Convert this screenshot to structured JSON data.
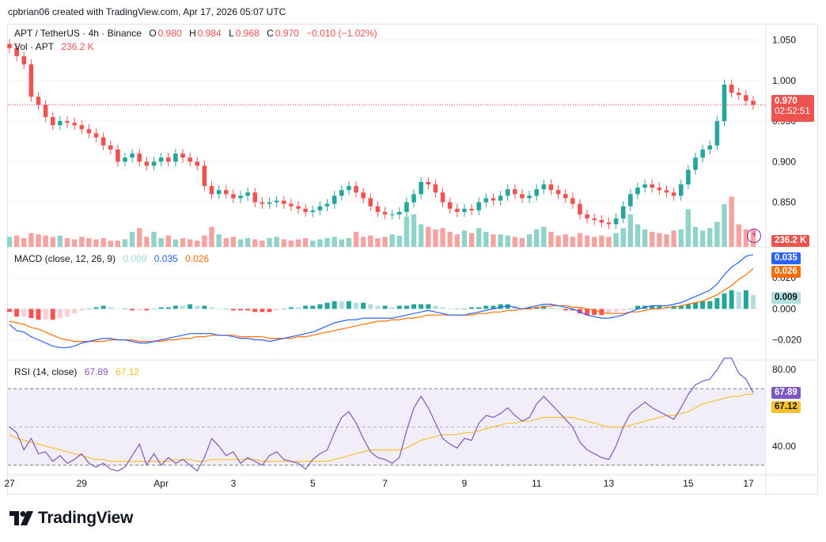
{
  "header": {
    "text": "cpbrian06 created with TradingView.com, Apr 17, 2026 05:07 UTC"
  },
  "price_legend": {
    "symbol": "APT / TetherUS · 4h · Binance",
    "o_label": "O",
    "o_value": "0.980",
    "h_label": "H",
    "h_value": "0.984",
    "l_label": "L",
    "l_value": "0.968",
    "c_label": "C",
    "c_value": "0.970",
    "change": "−0.010 (−1.02%)"
  },
  "vol_legend": {
    "label": "Vol · APT",
    "value": "236.2 K"
  },
  "macd_legend": {
    "label": "MACD (close, 12, 26, 9)",
    "hist": "0.009",
    "macd": "0.035",
    "signal": "0.026"
  },
  "rsi_legend": {
    "label": "RSI (14, close)",
    "rsi": "67.89",
    "ma": "67.12"
  },
  "badges": {
    "price": "0.970",
    "countdown": "02:52:51",
    "volume": "236.2 K",
    "macd": "0.035",
    "signal": "0.026",
    "hist": "0.009",
    "rsi": "67.89",
    "rsi_ma": "67.12"
  },
  "brand": {
    "name": "TradingView"
  },
  "colors": {
    "up": "#26a69a",
    "down": "#ef5350",
    "macd": "#2962ff",
    "signal": "#ff6d00",
    "rsi": "#7e57c2",
    "rsi_ma": "#fbc02d"
  },
  "chart_data": [
    {
      "type": "candlestick",
      "x_ticks": [
        "27",
        "29",
        "Apr",
        "3",
        "5",
        "7",
        "9",
        "11",
        "13",
        "15",
        "17"
      ],
      "y_ticks": [
        "1.050",
        "1.000",
        "0.950",
        "0.900",
        "0.850",
        "0.800"
      ],
      "ylim": [
        0.795,
        1.07
      ],
      "close": [
        1.04,
        1.03,
        1.02,
        0.98,
        0.97,
        0.955,
        0.945,
        0.95,
        0.948,
        0.945,
        0.94,
        0.935,
        0.93,
        0.92,
        0.915,
        0.9,
        0.905,
        0.91,
        0.9,
        0.895,
        0.9,
        0.905,
        0.9,
        0.91,
        0.905,
        0.9,
        0.895,
        0.87,
        0.86,
        0.865,
        0.86,
        0.855,
        0.858,
        0.862,
        0.85,
        0.848,
        0.85,
        0.852,
        0.848,
        0.845,
        0.842,
        0.838,
        0.84,
        0.845,
        0.848,
        0.858,
        0.865,
        0.87,
        0.862,
        0.855,
        0.845,
        0.838,
        0.835,
        0.835,
        0.838,
        0.85,
        0.86,
        0.875,
        0.872,
        0.862,
        0.85,
        0.842,
        0.838,
        0.842,
        0.84,
        0.85,
        0.855,
        0.852,
        0.858,
        0.866,
        0.86,
        0.855,
        0.858,
        0.866,
        0.872,
        0.865,
        0.86,
        0.855,
        0.848,
        0.835,
        0.83,
        0.828,
        0.825,
        0.823,
        0.83,
        0.845,
        0.86,
        0.868,
        0.872,
        0.868,
        0.865,
        0.862,
        0.858,
        0.872,
        0.89,
        0.905,
        0.915,
        0.92,
        0.95,
        0.995,
        0.985,
        0.982,
        0.975,
        0.97
      ],
      "volume": [
        0.8,
        0.9,
        0.7,
        1.1,
        1.0,
        0.9,
        0.8,
        0.9,
        0.7,
        0.6,
        0.8,
        0.7,
        0.6,
        0.7,
        0.5,
        0.5,
        0.6,
        1.2,
        1.5,
        0.8,
        1.2,
        0.7,
        0.9,
        0.6,
        0.7,
        0.6,
        0.5,
        0.9,
        1.6,
        1.0,
        0.7,
        0.8,
        0.6,
        0.7,
        0.6,
        0.5,
        0.7,
        0.8,
        0.6,
        0.5,
        0.6,
        0.7,
        0.5,
        0.6,
        0.7,
        0.8,
        0.6,
        0.7,
        1.2,
        0.8,
        0.9,
        0.7,
        0.8,
        1.0,
        0.9,
        2.4,
        2.6,
        1.8,
        1.6,
        1.4,
        1.5,
        1.2,
        1.0,
        1.3,
        1.1,
        1.5,
        1.2,
        1.0,
        1.0,
        0.9,
        0.8,
        0.7,
        1.0,
        1.4,
        1.6,
        1.2,
        0.9,
        1.0,
        0.8,
        1.1,
        0.9,
        0.8,
        0.9,
        0.8,
        1.1,
        1.5,
        2.6,
        1.8,
        1.4,
        1.2,
        1.1,
        1.0,
        1.3,
        1.4,
        3.0,
        1.6,
        1.3,
        1.5,
        2.0,
        3.4,
        4.0,
        1.8,
        1.4,
        1.4
      ],
      "volume_ylim": [
        0,
        6
      ]
    },
    {
      "type": "line",
      "y_ticks": [
        "0.020",
        "0.000",
        "−0.020"
      ],
      "ylim": [
        -0.033,
        0.04
      ],
      "series": [
        {
          "name": "MACD",
          "values": [
            -0.01,
            -0.014,
            -0.015,
            -0.018,
            -0.02,
            -0.022,
            -0.024,
            -0.025,
            -0.025,
            -0.024,
            -0.022,
            -0.021,
            -0.02,
            -0.019,
            -0.019,
            -0.02,
            -0.02,
            -0.021,
            -0.022,
            -0.022,
            -0.021,
            -0.02,
            -0.019,
            -0.018,
            -0.017,
            -0.016,
            -0.016,
            -0.016,
            -0.016,
            -0.017,
            -0.017,
            -0.018,
            -0.019,
            -0.019,
            -0.02,
            -0.02,
            -0.021,
            -0.02,
            -0.019,
            -0.018,
            -0.017,
            -0.016,
            -0.015,
            -0.013,
            -0.011,
            -0.009,
            -0.008,
            -0.007,
            -0.007,
            -0.006,
            -0.006,
            -0.006,
            -0.006,
            -0.006,
            -0.005,
            -0.004,
            -0.003,
            -0.002,
            -0.001,
            -0.002,
            -0.003,
            -0.004,
            -0.004,
            -0.004,
            -0.003,
            -0.002,
            -0.001,
            0.0,
            0.001,
            0.002,
            0.001,
            0.0,
            0.001,
            0.002,
            0.003,
            0.003,
            0.002,
            0.001,
            0.0,
            -0.002,
            -0.004,
            -0.005,
            -0.006,
            -0.006,
            -0.005,
            -0.004,
            -0.002,
            0.0,
            0.001,
            0.002,
            0.002,
            0.002,
            0.003,
            0.004,
            0.006,
            0.008,
            0.01,
            0.012,
            0.016,
            0.022,
            0.027,
            0.03,
            0.034,
            0.035
          ]
        },
        {
          "name": "Signal",
          "values": [
            -0.008,
            -0.009,
            -0.01,
            -0.012,
            -0.013,
            -0.015,
            -0.017,
            -0.019,
            -0.02,
            -0.021,
            -0.021,
            -0.021,
            -0.021,
            -0.021,
            -0.02,
            -0.02,
            -0.02,
            -0.02,
            -0.021,
            -0.021,
            -0.021,
            -0.021,
            -0.02,
            -0.02,
            -0.019,
            -0.019,
            -0.018,
            -0.018,
            -0.017,
            -0.017,
            -0.017,
            -0.017,
            -0.018,
            -0.018,
            -0.018,
            -0.018,
            -0.019,
            -0.019,
            -0.019,
            -0.019,
            -0.018,
            -0.018,
            -0.017,
            -0.016,
            -0.015,
            -0.014,
            -0.013,
            -0.012,
            -0.011,
            -0.01,
            -0.009,
            -0.008,
            -0.008,
            -0.007,
            -0.007,
            -0.006,
            -0.006,
            -0.005,
            -0.004,
            -0.004,
            -0.004,
            -0.004,
            -0.004,
            -0.004,
            -0.004,
            -0.003,
            -0.003,
            -0.002,
            -0.002,
            -0.001,
            -0.001,
            0.0,
            0.0,
            0.001,
            0.001,
            0.002,
            0.002,
            0.002,
            0.001,
            0.001,
            0.0,
            -0.001,
            -0.002,
            -0.003,
            -0.003,
            -0.003,
            -0.002,
            -0.002,
            -0.001,
            0.0,
            0.0,
            0.001,
            0.001,
            0.002,
            0.003,
            0.004,
            0.005,
            0.007,
            0.009,
            0.012,
            0.015,
            0.019,
            0.022,
            0.026
          ]
        }
      ]
    },
    {
      "type": "line",
      "y_ticks": [
        "80.00",
        "40.00"
      ],
      "ylim": [
        25,
        85
      ],
      "bands": [
        70,
        30
      ],
      "series": [
        {
          "name": "RSI",
          "values": [
            50,
            47,
            38,
            44,
            36,
            37,
            32,
            35,
            31,
            33,
            36,
            31,
            29,
            31,
            28,
            27,
            29,
            35,
            41,
            30,
            36,
            30,
            34,
            31,
            33,
            30,
            27,
            34,
            44,
            40,
            35,
            37,
            31,
            34,
            32,
            30,
            35,
            37,
            33,
            32,
            31,
            28,
            33,
            36,
            38,
            47,
            55,
            58,
            52,
            44,
            37,
            34,
            33,
            31,
            34,
            48,
            60,
            66,
            60,
            52,
            44,
            41,
            39,
            44,
            43,
            52,
            56,
            55,
            57,
            60,
            56,
            53,
            55,
            62,
            66,
            62,
            58,
            54,
            50,
            42,
            38,
            36,
            34,
            33,
            40,
            50,
            57,
            60,
            63,
            60,
            58,
            56,
            54,
            60,
            67,
            72,
            74,
            75,
            80,
            86,
            86,
            78,
            75,
            67.89
          ]
        },
        {
          "name": "MA",
          "values": [
            46,
            44,
            43,
            42,
            41,
            40,
            39,
            38,
            37,
            36,
            35,
            34,
            33,
            33,
            32,
            32,
            32,
            32,
            32,
            32,
            32,
            32,
            32,
            33,
            33,
            33,
            32,
            32,
            33,
            33,
            33,
            33,
            33,
            33,
            33,
            32,
            32,
            32,
            32,
            32,
            32,
            32,
            32,
            32,
            32,
            33,
            34,
            35,
            36,
            37,
            38,
            38,
            38,
            38,
            38,
            39,
            41,
            43,
            44,
            45,
            46,
            46,
            46,
            47,
            47,
            48,
            49,
            50,
            51,
            52,
            52,
            53,
            53,
            54,
            55,
            55,
            55,
            55,
            55,
            54,
            53,
            52,
            51,
            50,
            50,
            50,
            51,
            52,
            53,
            54,
            55,
            56,
            56,
            57,
            58,
            60,
            62,
            63,
            64,
            65,
            66,
            66,
            67,
            67.12
          ]
        }
      ]
    }
  ]
}
